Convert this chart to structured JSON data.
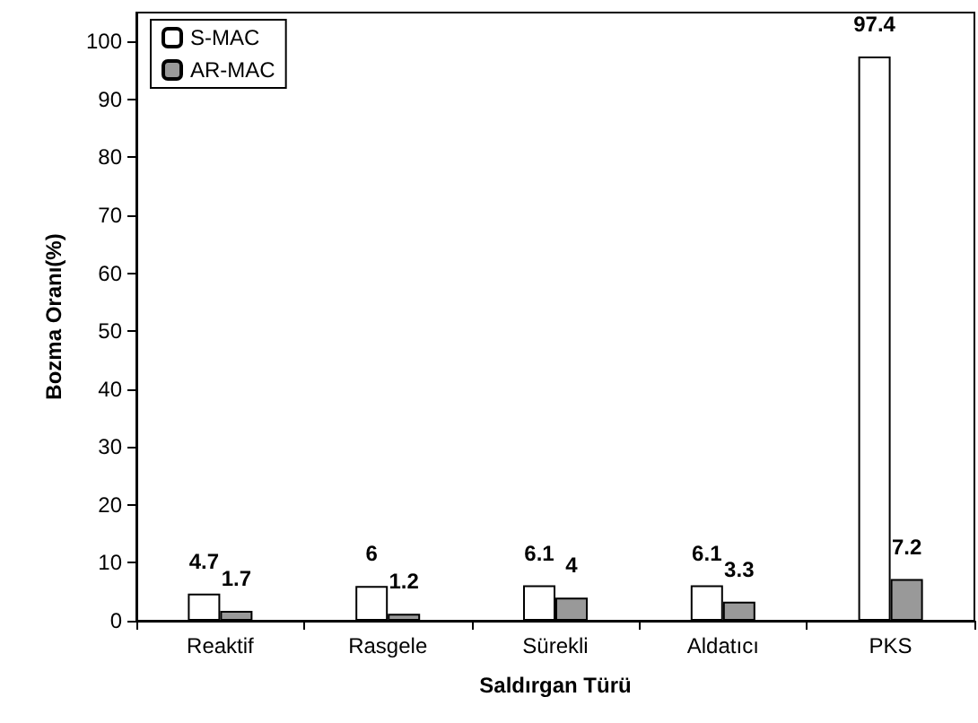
{
  "chart_data": {
    "type": "bar",
    "xlabel": "Saldırgan Türü",
    "ylabel": "Bozma Oranı(%)",
    "categories": [
      "Reaktif",
      "Rasgele",
      "Sürekli",
      "Aldatıcı",
      "PKS"
    ],
    "series": [
      {
        "name": "S-MAC",
        "color": "#ffffff",
        "values": [
          4.7,
          6,
          6.1,
          6.1,
          97.4
        ]
      },
      {
        "name": "AR-MAC",
        "color": "#999999",
        "values": [
          1.7,
          1.2,
          4,
          3.3,
          7.2
        ]
      }
    ],
    "ylim": [
      0,
      105
    ],
    "yticks": [
      0,
      10,
      20,
      30,
      40,
      50,
      60,
      70,
      80,
      90,
      100
    ],
    "grid": false,
    "legend": "top left",
    "data_labels": true
  }
}
